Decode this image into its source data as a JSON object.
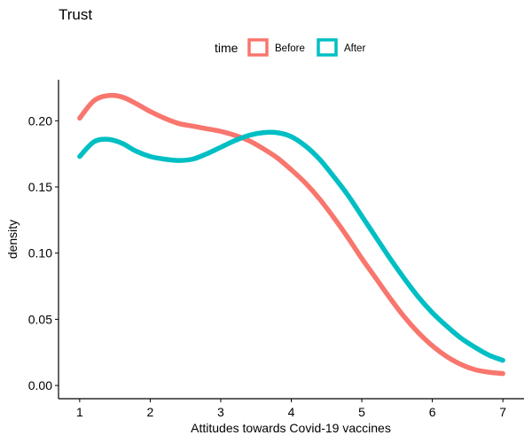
{
  "chart_data": {
    "type": "line",
    "title": "Trust",
    "xlabel": "Attitudes towards Covid-19 vaccines",
    "ylabel": "density",
    "xlim": [
      0.7,
      7.3
    ],
    "ylim": [
      -0.01,
      0.231
    ],
    "x_ticks": [
      "1",
      "2",
      "3",
      "4",
      "5",
      "6",
      "7"
    ],
    "y_ticks": [
      "0.00",
      "0.05",
      "0.10",
      "0.15",
      "0.20"
    ],
    "grid": false,
    "legend": {
      "title": "time",
      "position": "top"
    },
    "series": [
      {
        "name": "Before",
        "color": "#F8766D",
        "x": [
          1.0,
          1.2,
          1.4,
          1.6,
          1.8,
          2.0,
          2.2,
          2.4,
          2.6,
          2.8,
          3.0,
          3.2,
          3.4,
          3.6,
          3.8,
          4.0,
          4.2,
          4.4,
          4.6,
          4.8,
          5.0,
          5.2,
          5.4,
          5.6,
          5.8,
          6.0,
          6.2,
          6.4,
          6.6,
          6.8,
          7.0
        ],
        "values": [
          0.202,
          0.215,
          0.219,
          0.218,
          0.213,
          0.207,
          0.202,
          0.198,
          0.196,
          0.194,
          0.192,
          0.189,
          0.185,
          0.179,
          0.172,
          0.163,
          0.153,
          0.141,
          0.127,
          0.112,
          0.096,
          0.081,
          0.066,
          0.052,
          0.04,
          0.03,
          0.022,
          0.016,
          0.012,
          0.01,
          0.009
        ]
      },
      {
        "name": "After",
        "color": "#00BFC4",
        "x": [
          1.0,
          1.2,
          1.4,
          1.6,
          1.8,
          2.0,
          2.2,
          2.4,
          2.6,
          2.8,
          3.0,
          3.2,
          3.4,
          3.6,
          3.8,
          4.0,
          4.2,
          4.4,
          4.6,
          4.8,
          5.0,
          5.2,
          5.4,
          5.6,
          5.8,
          6.0,
          6.2,
          6.4,
          6.6,
          6.8,
          7.0
        ],
        "values": [
          0.173,
          0.184,
          0.186,
          0.183,
          0.177,
          0.173,
          0.171,
          0.17,
          0.171,
          0.175,
          0.18,
          0.185,
          0.189,
          0.191,
          0.191,
          0.188,
          0.181,
          0.171,
          0.158,
          0.144,
          0.128,
          0.112,
          0.096,
          0.081,
          0.067,
          0.055,
          0.045,
          0.036,
          0.029,
          0.023,
          0.019
        ]
      }
    ]
  }
}
